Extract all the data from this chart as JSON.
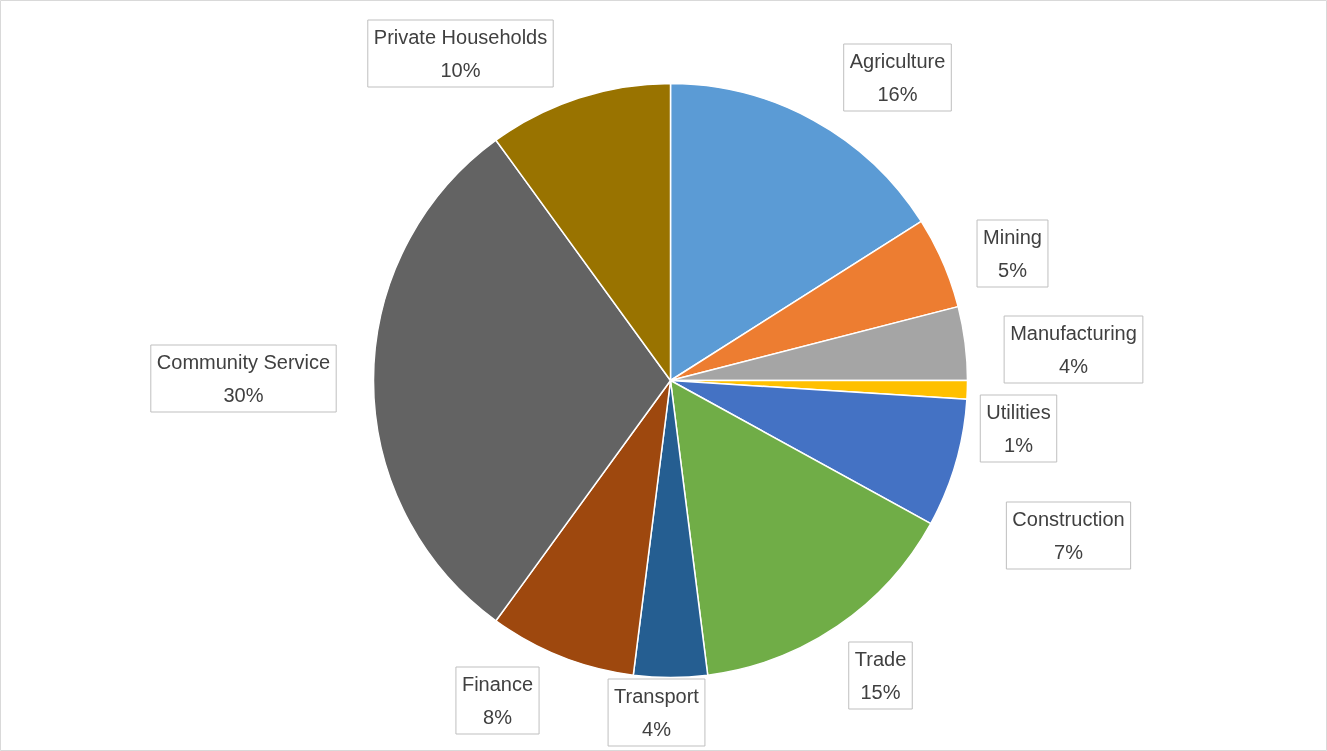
{
  "chart_data": {
    "type": "pie",
    "categories": [
      "Agriculture",
      "Mining",
      "Manufacturing",
      "Utilities",
      "Construction",
      "Trade",
      "Transport",
      "Finance",
      "Community Service",
      "Private Households"
    ],
    "values": [
      16,
      5,
      4,
      1,
      7,
      15,
      4,
      8,
      30,
      10
    ],
    "value_labels": [
      "16%",
      "5%",
      "4%",
      "1%",
      "7%",
      "15%",
      "4%",
      "8%",
      "30%",
      "10%"
    ],
    "colors": [
      "#5b9bd5",
      "#ed7d31",
      "#a5a5a5",
      "#ffc000",
      "#4472c4",
      "#70ad47",
      "#255e91",
      "#9e480e",
      "#636363",
      "#997300"
    ]
  }
}
